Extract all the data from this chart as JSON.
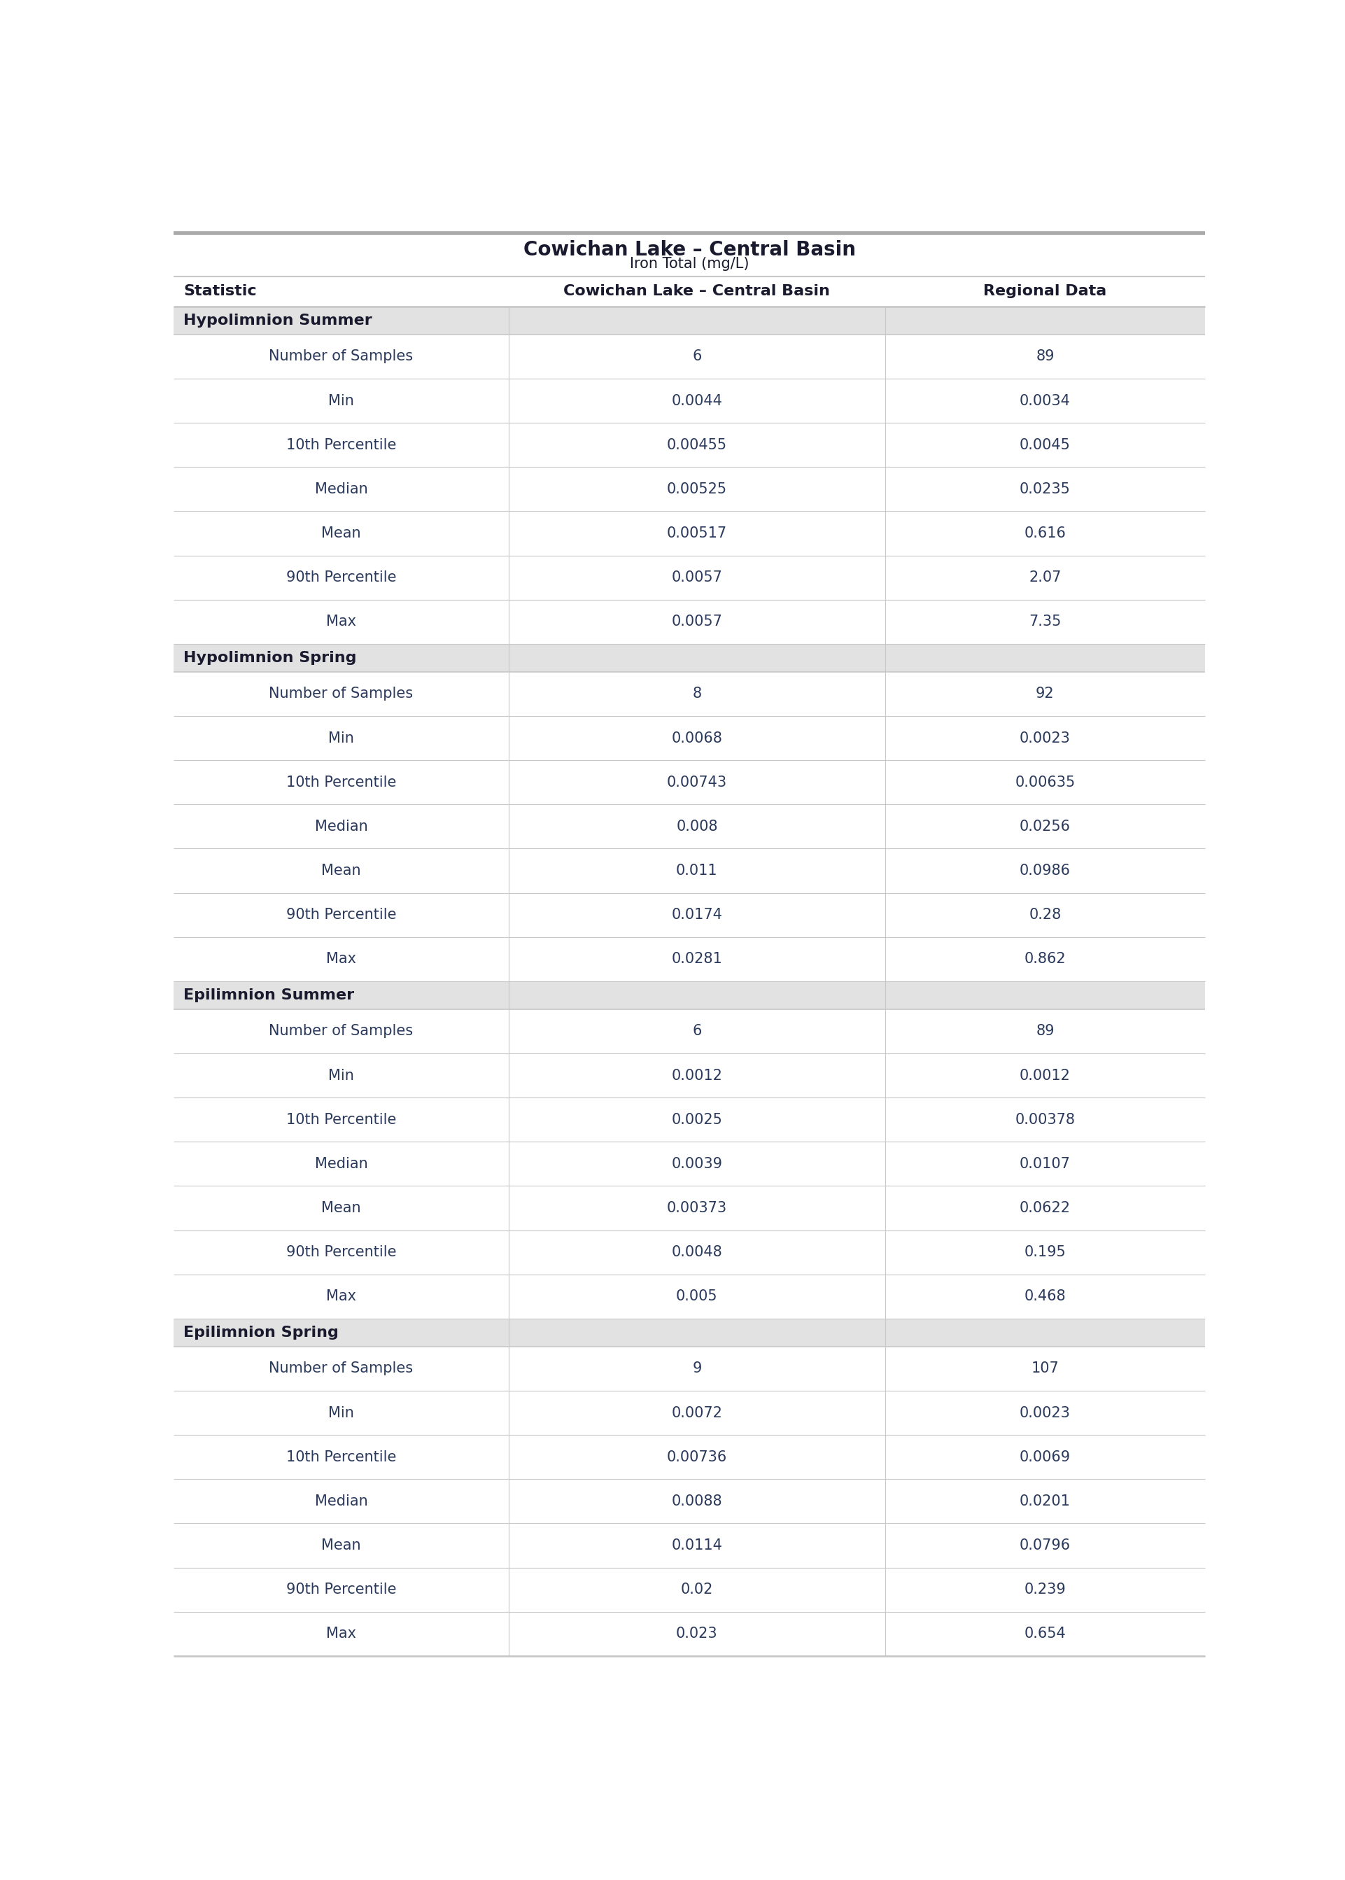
{
  "title": "Cowichan Lake – Central Basin",
  "subtitle": "Iron Total (mg/L)",
  "col_headers": [
    "Statistic",
    "Cowichan Lake – Central Basin",
    "Regional Data"
  ],
  "sections": [
    {
      "name": "Hypolimnion Summer",
      "rows": [
        [
          "Number of Samples",
          "6",
          "89"
        ],
        [
          "Min",
          "0.0044",
          "0.0034"
        ],
        [
          "10th Percentile",
          "0.00455",
          "0.0045"
        ],
        [
          "Median",
          "0.00525",
          "0.0235"
        ],
        [
          "Mean",
          "0.00517",
          "0.616"
        ],
        [
          "90th Percentile",
          "0.0057",
          "2.07"
        ],
        [
          "Max",
          "0.0057",
          "7.35"
        ]
      ]
    },
    {
      "name": "Hypolimnion Spring",
      "rows": [
        [
          "Number of Samples",
          "8",
          "92"
        ],
        [
          "Min",
          "0.0068",
          "0.0023"
        ],
        [
          "10th Percentile",
          "0.00743",
          "0.00635"
        ],
        [
          "Median",
          "0.008",
          "0.0256"
        ],
        [
          "Mean",
          "0.011",
          "0.0986"
        ],
        [
          "90th Percentile",
          "0.0174",
          "0.28"
        ],
        [
          "Max",
          "0.0281",
          "0.862"
        ]
      ]
    },
    {
      "name": "Epilimnion Summer",
      "rows": [
        [
          "Number of Samples",
          "6",
          "89"
        ],
        [
          "Min",
          "0.0012",
          "0.0012"
        ],
        [
          "10th Percentile",
          "0.0025",
          "0.00378"
        ],
        [
          "Median",
          "0.0039",
          "0.0107"
        ],
        [
          "Mean",
          "0.00373",
          "0.0622"
        ],
        [
          "90th Percentile",
          "0.0048",
          "0.195"
        ],
        [
          "Max",
          "0.005",
          "0.468"
        ]
      ]
    },
    {
      "name": "Epilimnion Spring",
      "rows": [
        [
          "Number of Samples",
          "9",
          "107"
        ],
        [
          "Min",
          "0.0072",
          "0.0023"
        ],
        [
          "10th Percentile",
          "0.00736",
          "0.0069"
        ],
        [
          "Median",
          "0.0088",
          "0.0201"
        ],
        [
          "Mean",
          "0.0114",
          "0.0796"
        ],
        [
          "90th Percentile",
          "0.02",
          "0.239"
        ],
        [
          "Max",
          "0.023",
          "0.654"
        ]
      ]
    }
  ],
  "colors": {
    "section_bg": "#e2e2e2",
    "row_bg_white": "#ffffff",
    "header_text": "#1a1a2e",
    "section_text": "#1a1a2e",
    "data_text": "#2b3a5c",
    "title_text": "#1a1a2e",
    "border_color": "#c8c8c8",
    "top_border": "#aaaaaa"
  },
  "title_fontsize": 20,
  "subtitle_fontsize": 15,
  "header_fontsize": 16,
  "section_fontsize": 16,
  "data_fontsize": 15
}
